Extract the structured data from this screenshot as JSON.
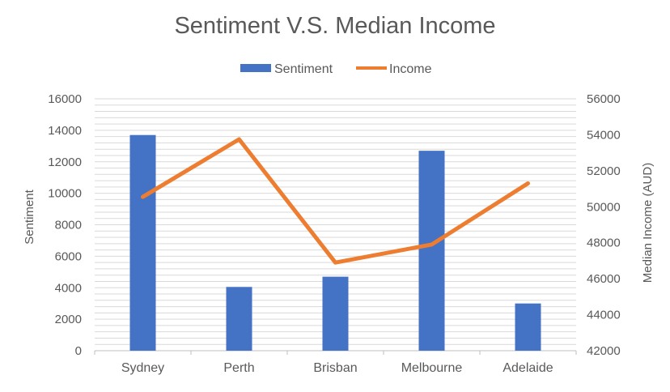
{
  "chart_data": {
    "type": "bar",
    "title": "Sentiment V.S. Median Income",
    "categories": [
      "Sydney",
      "Perth",
      "Brisban",
      "Melbourne",
      "Adelaide"
    ],
    "series": [
      {
        "name": "Sentiment",
        "type": "bar",
        "axis": "left",
        "color": "#4472C4",
        "values": [
          13700,
          4050,
          4700,
          12700,
          3000
        ]
      },
      {
        "name": "Income",
        "type": "line",
        "axis": "right",
        "color": "#ED7D31",
        "values": [
          50550,
          53750,
          46900,
          47900,
          51300
        ]
      }
    ],
    "ylabel": "Sentiment",
    "y2label": "Median Income (AUD)",
    "ylim": [
      0,
      16000
    ],
    "y2lim": [
      42000,
      56000
    ],
    "yticks": [
      "0",
      "2000",
      "4000",
      "6000",
      "8000",
      "10000",
      "12000",
      "14000",
      "16000"
    ],
    "y2ticks": [
      "42000",
      "44000",
      "46000",
      "48000",
      "50000",
      "52000",
      "54000",
      "56000"
    ],
    "grid": true,
    "legend_position": "top"
  }
}
